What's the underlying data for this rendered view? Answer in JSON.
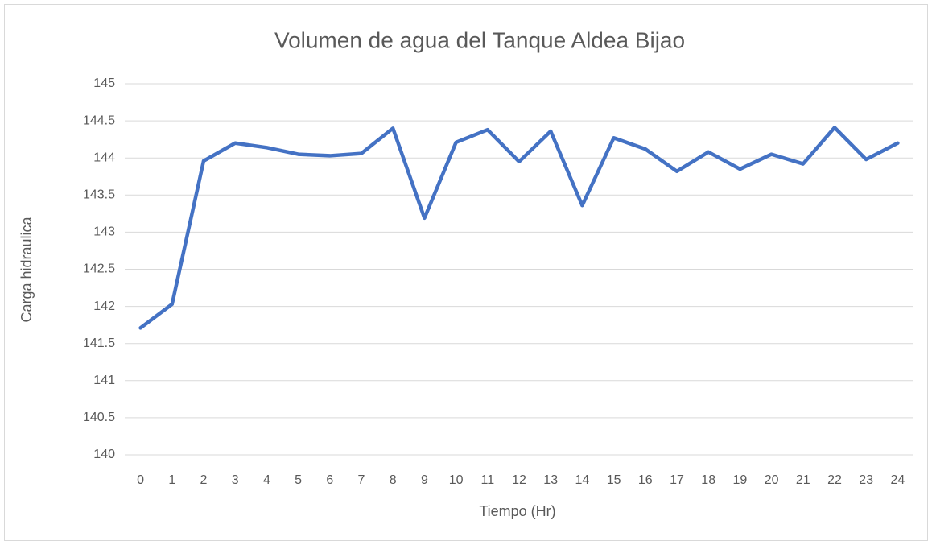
{
  "chart_data": {
    "type": "line",
    "title": "Volumen de agua del Tanque Aldea Bijao",
    "x_label": "Tiempo (Hr)",
    "y_label": "Carga hidraulica",
    "categories": [
      "0",
      "1",
      "2",
      "3",
      "4",
      "5",
      "6",
      "7",
      "8",
      "9",
      "10",
      "11",
      "12",
      "13",
      "14",
      "15",
      "16",
      "17",
      "18",
      "19",
      "20",
      "21",
      "22",
      "23",
      "24"
    ],
    "series": [
      {
        "name": "Carga hidraulica",
        "color": "#4472c4",
        "values": [
          141.71,
          142.03,
          143.96,
          144.2,
          144.14,
          144.05,
          144.03,
          144.06,
          144.4,
          143.19,
          144.21,
          144.38,
          143.95,
          144.36,
          143.36,
          144.27,
          144.12,
          143.82,
          144.08,
          143.85,
          144.05,
          143.92,
          144.41,
          143.98,
          144.2
        ]
      }
    ],
    "ylim": [
      140,
      145
    ],
    "yticks": [
      140,
      140.5,
      141,
      141.5,
      142,
      142.5,
      143,
      143.5,
      144,
      144.5,
      145
    ],
    "grid": true
  }
}
